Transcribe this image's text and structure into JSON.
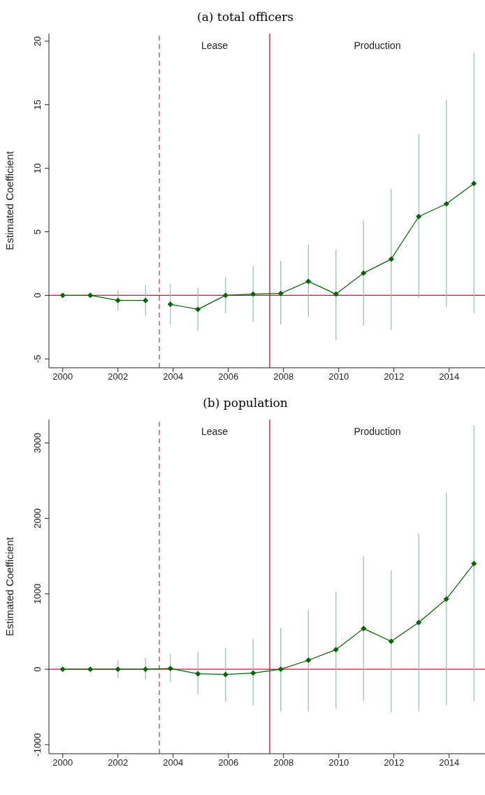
{
  "chart_data": [
    {
      "type": "line",
      "title": "(a) total officers",
      "ylabel": "Estimated Coefficient",
      "series": [
        {
          "color": "#006400",
          "x": [
            2000,
            2001,
            2002,
            2003
          ],
          "values": [
            0,
            0,
            -0.4,
            -0.4
          ],
          "errors": [
            null,
            null,
            [
              -1.2,
              0.4
            ],
            [
              -1.6,
              0.8
            ]
          ]
        },
        {
          "color": "#006400",
          "x": [
            2003.9,
            2004.9,
            2005.9,
            2006.9,
            2007.9,
            2008.9,
            2009.9,
            2010.9,
            2011.9,
            2012.9,
            2013.9,
            2014.9
          ],
          "values": [
            -0.7,
            -1.1,
            0,
            0.1,
            0.15,
            1.1,
            0.1,
            1.75,
            2.85,
            6.2,
            7.2,
            8.8
          ],
          "errors": [
            [
              -2.3,
              0.9
            ],
            [
              -2.8,
              0.6
            ],
            [
              -1.4,
              1.4
            ],
            [
              -2.1,
              2.3
            ],
            [
              -2.3,
              2.7
            ],
            [
              -1.7,
              4.0
            ],
            [
              -3.5,
              3.6
            ],
            [
              -2.4,
              5.9
            ],
            [
              -2.7,
              8.4
            ],
            [
              -0.2,
              12.7
            ],
            [
              -0.9,
              15.4
            ],
            [
              -1.4,
              19.1
            ]
          ]
        }
      ],
      "xlim": [
        1999.5,
        2015.3
      ],
      "xticks": [
        2000,
        2002,
        2004,
        2006,
        2008,
        2010,
        2012,
        2014
      ],
      "ylim": [
        -5.7,
        20.6
      ],
      "yticks": [
        -5,
        0,
        5,
        10,
        15,
        20
      ],
      "ref_lines": [
        {
          "axis": "x",
          "value": 2003.5,
          "color": "#d6336c",
          "line_style": "dashed"
        },
        {
          "axis": "x",
          "value": 2007.5,
          "color": "#d0103a",
          "line_style": "solid"
        },
        {
          "axis": "y",
          "value": 0,
          "color": "#d0103a",
          "line_style": "solid"
        }
      ],
      "annotations": [
        "Lease",
        "Production"
      ],
      "marker": "diamond",
      "line_style": "solid",
      "grid": false,
      "legend": false
    },
    {
      "type": "line",
      "title": "(b) population",
      "ylabel": "Estimated Coefficient",
      "series": [
        {
          "color": "#006400",
          "x": [
            2000,
            2001,
            2002,
            2003,
            2003.9,
            2004.9,
            2005.9,
            2006.9,
            2007.9,
            2008.9,
            2009.9,
            2010.9,
            2011.9,
            2012.9,
            2013.9,
            2014.9
          ],
          "values": [
            0,
            0,
            0,
            0,
            10,
            -60,
            -70,
            -50,
            0,
            120,
            260,
            540,
            370,
            620,
            930,
            1400
          ],
          "errors": [
            null,
            null,
            [
              -120,
              120
            ],
            [
              -140,
              150
            ],
            [
              -170,
              200
            ],
            [
              -330,
              230
            ],
            [
              -430,
              280
            ],
            [
              -480,
              400
            ],
            [
              -560,
              550
            ],
            [
              -560,
              780
            ],
            [
              -520,
              1030
            ],
            [
              -420,
              1500
            ],
            [
              -570,
              1310
            ],
            [
              -560,
              1800
            ],
            [
              -480,
              2340
            ],
            [
              -420,
              3230
            ]
          ]
        }
      ],
      "xlim": [
        1999.5,
        2015.3
      ],
      "xticks": [
        2000,
        2002,
        2004,
        2006,
        2008,
        2010,
        2012,
        2014
      ],
      "ylim": [
        -1120,
        3310
      ],
      "yticks": [
        -1000,
        0,
        1000,
        2000,
        3000
      ],
      "ref_lines": [
        {
          "axis": "x",
          "value": 2003.5,
          "color": "#d6336c",
          "line_style": "dashed"
        },
        {
          "axis": "x",
          "value": 2007.5,
          "color": "#d0103a",
          "line_style": "solid"
        },
        {
          "axis": "y",
          "value": 0,
          "color": "#d0103a",
          "line_style": "solid"
        }
      ],
      "annotations": [
        "Lease",
        "Production"
      ],
      "marker": "diamond",
      "line_style": "solid",
      "grid": false,
      "legend": false
    }
  ]
}
